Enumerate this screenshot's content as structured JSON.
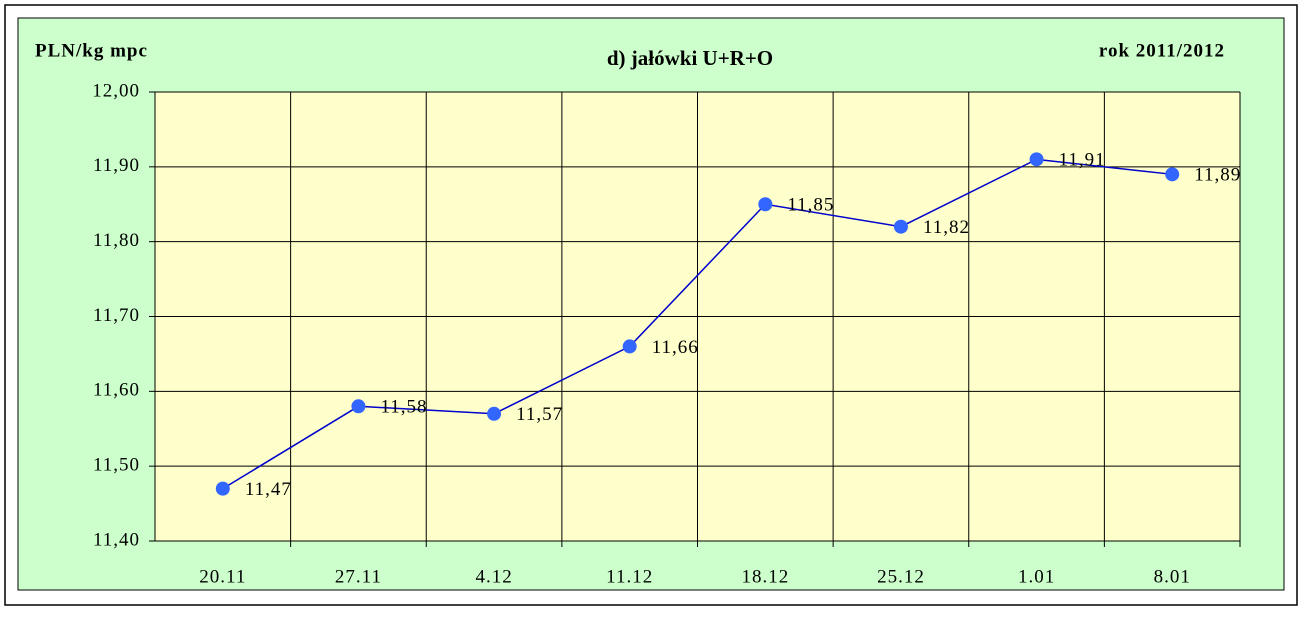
{
  "chart_data": {
    "type": "line",
    "title": "d) jałówki U+R+O",
    "y_axis_label": "PLN/kg mpc",
    "annotation": "rok 2011/2012",
    "categories": [
      "20.11",
      "27.11",
      "4.12",
      "11.12",
      "18.12",
      "25.12",
      "1.01",
      "8.01"
    ],
    "series": [
      {
        "name": null,
        "color": "#0000cc",
        "marker_color": "#3366ff",
        "values": [
          11.47,
          11.58,
          11.57,
          11.66,
          11.85,
          11.82,
          11.91,
          11.89
        ],
        "value_labels": [
          "11,47",
          "11,58",
          "11,57",
          "11,66",
          "11,85",
          "11,82",
          "11,91",
          "11,89"
        ]
      }
    ],
    "ylim": [
      11.4,
      12.0
    ],
    "yticks": [
      {
        "value": 11.4,
        "label": "11,40"
      },
      {
        "value": 11.5,
        "label": "11,50"
      },
      {
        "value": 11.6,
        "label": "11,60"
      },
      {
        "value": 11.7,
        "label": "11,70"
      },
      {
        "value": 11.8,
        "label": "11,80"
      },
      {
        "value": 11.9,
        "label": "11,90"
      },
      {
        "value": 12.0,
        "label": "12,00"
      }
    ],
    "grid": true
  }
}
